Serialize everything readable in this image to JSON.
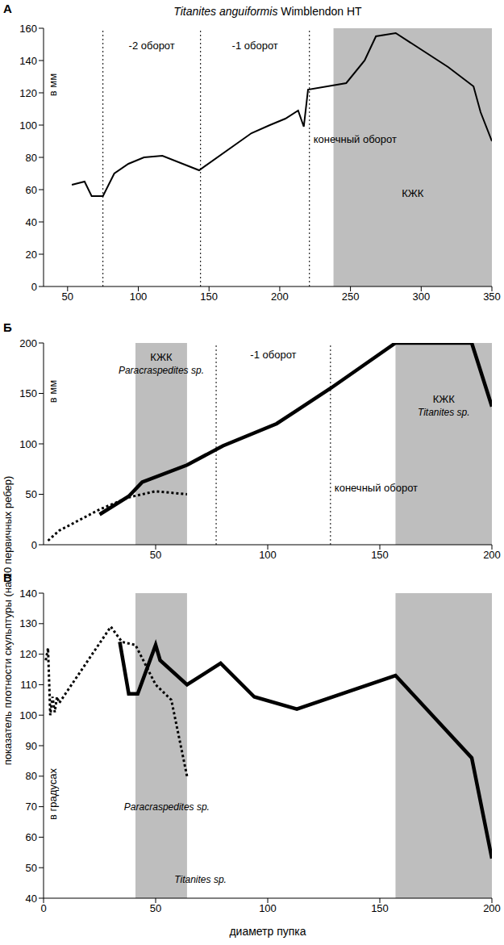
{
  "chart_data": [
    {
      "type": "line",
      "title": "Titanites anguiformis Wimblendon HT",
      "panel": "А",
      "units": "в мм",
      "grid": false,
      "xlim": [
        33,
        350
      ],
      "xticks": [
        50,
        100,
        150,
        200,
        250,
        300,
        350
      ],
      "ylim": [
        0,
        160
      ],
      "yticks": [
        0,
        20,
        40,
        60,
        80,
        100,
        120,
        140,
        160
      ],
      "series": [
        {
          "x": [
            53,
            62,
            67,
            75,
            83,
            93,
            104,
            117,
            143,
            180,
            193,
            204,
            213,
            217,
            220,
            247,
            260,
            268,
            282,
            319,
            337,
            342,
            350
          ],
          "values": [
            63,
            65,
            56,
            56,
            70,
            76,
            80,
            81,
            72,
            95,
            100,
            104,
            109,
            99,
            122,
            126,
            140,
            155,
            157,
            136,
            124,
            108,
            90
          ],
          "color": "#000000",
          "line_style": "solid"
        }
      ],
      "regions": [
        {
          "from": 75,
          "to": 144,
          "label": "-2 оборот"
        },
        {
          "from": 144,
          "to": 221,
          "label": "-1 оборот"
        },
        {
          "from": 221,
          "to": 350,
          "label": "конечный оборот"
        }
      ],
      "shaded": [
        {
          "from": 238,
          "to": 350,
          "label": "КЖК",
          "color": "#a8a8a8"
        }
      ]
    },
    {
      "type": "line",
      "panel": "Б",
      "units": "в мм",
      "ylabel": "показатель плотности скульптуры (на 10 первичных ребер)",
      "grid": false,
      "xlim": [
        0,
        200
      ],
      "xticks": [
        50,
        100,
        150,
        200
      ],
      "ylim": [
        0,
        200
      ],
      "yticks": [
        0,
        50,
        100,
        150,
        200
      ],
      "series": [
        {
          "x": [
            25,
            38,
            44,
            64,
            80,
            104,
            128,
            157,
            191,
            200
          ],
          "values": [
            30,
            48,
            62,
            79,
            98,
            120,
            155,
            200,
            200,
            137
          ],
          "color": "#000000",
          "line_style": "solid"
        },
        {
          "x": [
            2,
            7,
            25,
            38,
            50,
            64
          ],
          "values": [
            4,
            14,
            35,
            47,
            53,
            50
          ],
          "color": "#000000",
          "line_style": "dotted"
        }
      ],
      "regions": [
        {
          "from": 77,
          "to": 128,
          "label": "-1 оборот"
        },
        {
          "from": 128,
          "to": 200,
          "label": "конечный оборот"
        }
      ],
      "shaded": [
        {
          "from": 41,
          "to": 64,
          "label": "КЖК",
          "sublabel": "Paracraspedites sp.",
          "color": "#a8a8a8"
        },
        {
          "from": 157,
          "to": 200,
          "label": "КЖК",
          "sublabel": "Titanites sp.",
          "color": "#a8a8a8"
        }
      ]
    },
    {
      "type": "line",
      "panel": "В",
      "units": "в градусах",
      "xlabel": "диаметр пупка",
      "grid": false,
      "xlim": [
        0,
        200
      ],
      "xticks": [
        0,
        50,
        100,
        150,
        200
      ],
      "ylim": [
        40,
        140
      ],
      "yticks": [
        40,
        50,
        60,
        70,
        80,
        90,
        100,
        110,
        120,
        130,
        140
      ],
      "series": [
        {
          "x": [
            34,
            38,
            42,
            50,
            52,
            64,
            79,
            94,
            113,
            157,
            191,
            200
          ],
          "values": [
            124,
            107,
            107,
            123,
            118,
            110,
            117,
            106,
            102,
            113,
            86,
            53
          ],
          "color": "#000000",
          "line_style": "solid"
        },
        {
          "x": [
            1,
            2,
            3,
            4,
            5,
            6,
            7,
            30,
            35,
            41,
            50,
            57,
            64
          ],
          "values": [
            118,
            122,
            100,
            106,
            101,
            106,
            104,
            129,
            124,
            123,
            110,
            105,
            80
          ],
          "color": "#000000",
          "line_style": "dotted"
        }
      ],
      "regions": [],
      "shaded": [
        {
          "from": 41,
          "to": 64,
          "color": "#a8a8a8"
        },
        {
          "from": 157,
          "to": 200,
          "color": "#a8a8a8"
        }
      ],
      "annotations": [
        "Paracraspedites sp.",
        "Titanites sp."
      ]
    }
  ]
}
